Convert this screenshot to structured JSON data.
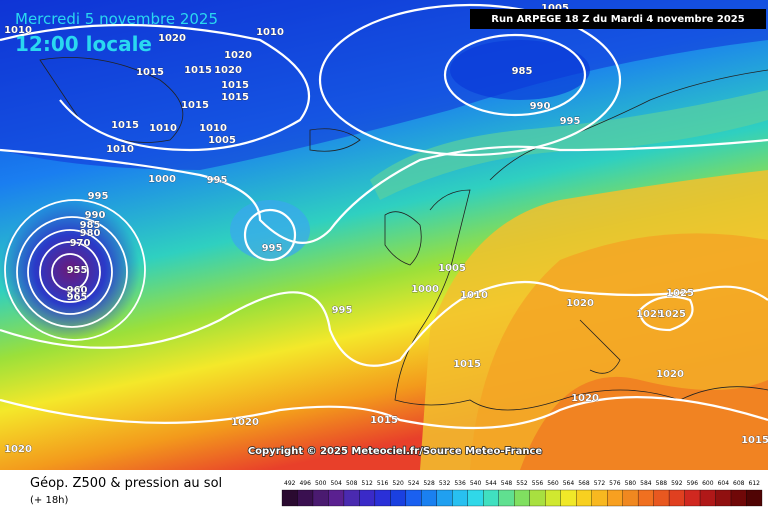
{
  "header": {
    "date": "Mercredi 5 novembre 2025",
    "time": "12:00 locale",
    "run": "Run ARPEGE 18 Z du Mardi 4 novembre 2025"
  },
  "copyright": "Copyright © 2025 Meteociel.fr/Source Meteo-France",
  "legend": {
    "title": "Géop. Z500 & pression au sol",
    "lead": "(+ 18h)",
    "scale": [
      492,
      496,
      500,
      504,
      508,
      512,
      516,
      520,
      524,
      528,
      532,
      536,
      540,
      544,
      548,
      552,
      556,
      560,
      564,
      568,
      572,
      576,
      580,
      584,
      588,
      592,
      596,
      600,
      604,
      608,
      612
    ]
  },
  "isobars": [
    "1010",
    "1020",
    "1020",
    "1010",
    "1015",
    "1015",
    "1020",
    "1015",
    "1015",
    "1015",
    "1015",
    "1010",
    "1010",
    "1005",
    "1010",
    "1000",
    "995",
    "995",
    "990",
    "985",
    "980",
    "970",
    "955",
    "960",
    "965",
    "995",
    "995",
    "985",
    "990",
    "995",
    "1005",
    "1005",
    "1000",
    "1010",
    "1020",
    "1025",
    "1025",
    "1025",
    "1015",
    "1020",
    "1020",
    "1015",
    "1020",
    "1020",
    "1015"
  ]
}
